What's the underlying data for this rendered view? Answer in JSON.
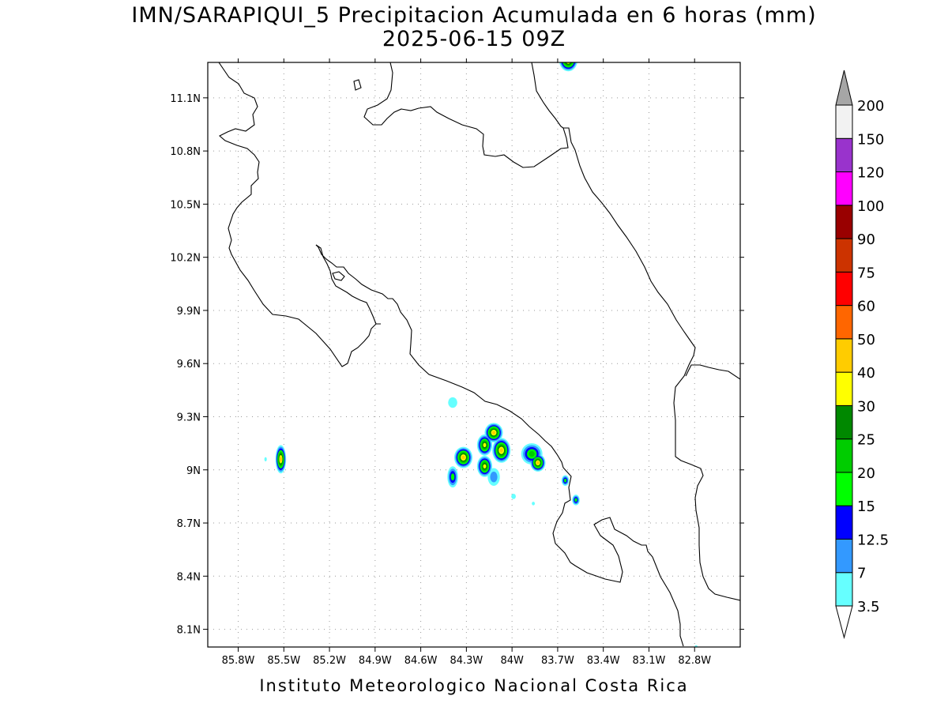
{
  "title_line1": "IMN/SARAPIQUI_5 Precipitacion Acumulada en 6 horas (mm)",
  "title_line2": "2025-06-15 09Z",
  "footer": "Instituto Meteorologico Nacional Costa Rica",
  "map": {
    "lon_range": [
      -86.0,
      -82.5
    ],
    "lat_range": [
      8.0,
      11.3
    ],
    "x_ticks": [
      {
        "lon": -85.8,
        "label": "85.8W"
      },
      {
        "lon": -85.5,
        "label": "85.5W"
      },
      {
        "lon": -85.2,
        "label": "85.2W"
      },
      {
        "lon": -84.9,
        "label": "84.9W"
      },
      {
        "lon": -84.6,
        "label": "84.6W"
      },
      {
        "lon": -84.3,
        "label": "84.3W"
      },
      {
        "lon": -84.0,
        "label": "84W"
      },
      {
        "lon": -83.7,
        "label": "83.7W"
      },
      {
        "lon": -83.4,
        "label": "83.4W"
      },
      {
        "lon": -83.1,
        "label": "83.1W"
      },
      {
        "lon": -82.8,
        "label": "82.8W"
      }
    ],
    "y_ticks": [
      {
        "lat": 11.1,
        "label": "11.1N"
      },
      {
        "lat": 10.8,
        "label": "10.8N"
      },
      {
        "lat": 10.5,
        "label": "10.5N"
      },
      {
        "lat": 10.2,
        "label": "10.2N"
      },
      {
        "lat": 9.9,
        "label": "9.9N"
      },
      {
        "lat": 9.6,
        "label": "9.6N"
      },
      {
        "lat": 9.3,
        "label": "9.3N"
      },
      {
        "lat": 9.0,
        "label": "9N"
      },
      {
        "lat": 8.7,
        "label": "8.7N"
      },
      {
        "lat": 8.4,
        "label": "8.4N"
      },
      {
        "lat": 8.1,
        "label": "8.1N"
      }
    ],
    "grid": true,
    "coast_color": "#000000"
  },
  "colorbar": {
    "top_arrow_color": "#a6a6a6",
    "bottom_arrow_color": "#ffffff",
    "bins": [
      {
        "color": "#ffffff",
        "label": "3.5"
      },
      {
        "color": "#66ffff",
        "label": "7"
      },
      {
        "color": "#3399ff",
        "label": "12.5"
      },
      {
        "color": "#0000ff",
        "label": "15"
      },
      {
        "color": "#00ff00",
        "label": "20"
      },
      {
        "color": "#00cc00",
        "label": "25"
      },
      {
        "color": "#008800",
        "label": "30"
      },
      {
        "color": "#ffff00",
        "label": "40"
      },
      {
        "color": "#ffcc00",
        "label": "50"
      },
      {
        "color": "#ff6600",
        "label": "60"
      },
      {
        "color": "#ff0000",
        "label": "75"
      },
      {
        "color": "#cc3300",
        "label": "90"
      },
      {
        "color": "#990000",
        "label": "100"
      },
      {
        "color": "#ff00ff",
        "label": "120"
      },
      {
        "color": "#9933cc",
        "label": "150"
      },
      {
        "color": "#f2f2f2",
        "label": "200"
      }
    ]
  },
  "precip_cells": [
    {
      "lon": -85.52,
      "lat": 9.06,
      "rx": 0.035,
      "ry": 0.08,
      "level": 40
    },
    {
      "lon": -85.62,
      "lat": 9.06,
      "rx": 0.008,
      "ry": 0.012,
      "level": 3.5
    },
    {
      "lon": -84.39,
      "lat": 9.38,
      "rx": 0.03,
      "ry": 0.03,
      "level": 3.5
    },
    {
      "lon": -84.32,
      "lat": 9.07,
      "rx": 0.06,
      "ry": 0.06,
      "level": 40
    },
    {
      "lon": -84.39,
      "lat": 8.96,
      "rx": 0.035,
      "ry": 0.06,
      "level": 15
    },
    {
      "lon": -84.18,
      "lat": 9.14,
      "rx": 0.05,
      "ry": 0.06,
      "level": 30
    },
    {
      "lon": -84.12,
      "lat": 9.21,
      "rx": 0.06,
      "ry": 0.055,
      "level": 40
    },
    {
      "lon": -84.07,
      "lat": 9.11,
      "rx": 0.06,
      "ry": 0.07,
      "level": 40
    },
    {
      "lon": -84.18,
      "lat": 9.02,
      "rx": 0.05,
      "ry": 0.06,
      "level": 30
    },
    {
      "lon": -84.12,
      "lat": 8.96,
      "rx": 0.04,
      "ry": 0.05,
      "level": 7
    },
    {
      "lon": -83.99,
      "lat": 8.85,
      "rx": 0.015,
      "ry": 0.015,
      "level": 3.5
    },
    {
      "lon": -83.86,
      "lat": 8.81,
      "rx": 0.01,
      "ry": 0.01,
      "level": 3.5
    },
    {
      "lon": -83.87,
      "lat": 9.09,
      "rx": 0.07,
      "ry": 0.06,
      "level": 20
    },
    {
      "lon": -83.83,
      "lat": 9.04,
      "rx": 0.05,
      "ry": 0.05,
      "level": 40
    },
    {
      "lon": -83.65,
      "lat": 8.94,
      "rx": 0.025,
      "ry": 0.03,
      "level": 15
    },
    {
      "lon": -83.58,
      "lat": 8.83,
      "rx": 0.025,
      "ry": 0.03,
      "level": 15
    },
    {
      "lon": -83.63,
      "lat": 11.31,
      "rx": 0.06,
      "ry": 0.06,
      "level": 40
    },
    {
      "lon": -82.79,
      "lat": 8.0,
      "rx": 0.01,
      "ry": 0.01,
      "level": 3.5
    }
  ]
}
